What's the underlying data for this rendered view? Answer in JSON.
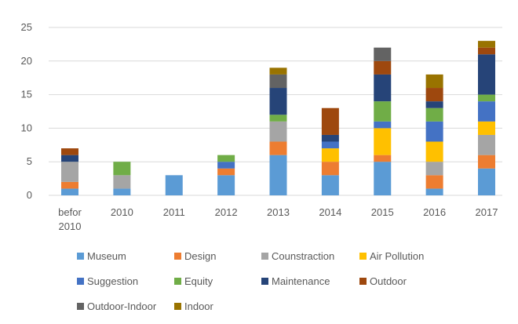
{
  "chart_data": {
    "type": "bar",
    "stacked": true,
    "categories": [
      [
        "befor",
        "2010"
      ],
      [
        "2010"
      ],
      [
        "2011"
      ],
      [
        "2012"
      ],
      [
        "2013"
      ],
      [
        "2014"
      ],
      [
        "2015"
      ],
      [
        "2016"
      ],
      [
        "2017"
      ]
    ],
    "ylim": [
      0,
      25
    ],
    "yticks": [
      0,
      5,
      10,
      15,
      20,
      25
    ],
    "grid": true,
    "legend_position": "bottom",
    "series": [
      {
        "name": "Museum",
        "color": "#5B9BD5",
        "values": [
          1,
          1,
          3,
          3,
          6,
          3,
          5,
          1,
          4
        ]
      },
      {
        "name": "Design",
        "color": "#ED7D31",
        "values": [
          1,
          0,
          0,
          1,
          2,
          2,
          1,
          2,
          2
        ]
      },
      {
        "name": "Counstraction",
        "color": "#A5A5A5",
        "values": [
          3,
          2,
          0,
          0,
          3,
          0,
          0,
          2,
          3
        ]
      },
      {
        "name": "Air Pollution",
        "color": "#FFC000",
        "values": [
          0,
          0,
          0,
          0,
          0,
          2,
          4,
          3,
          2
        ]
      },
      {
        "name": "Suggestion",
        "color": "#4472C4",
        "values": [
          0,
          0,
          0,
          1,
          0,
          1,
          1,
          3,
          3
        ]
      },
      {
        "name": "Equity",
        "color": "#70AD47",
        "values": [
          0,
          2,
          0,
          1,
          1,
          0,
          3,
          2,
          1
        ]
      },
      {
        "name": "Maintenance",
        "color": "#264478",
        "values": [
          1,
          0,
          0,
          0,
          4,
          1,
          4,
          1,
          6
        ]
      },
      {
        "name": "Outdoor",
        "color": "#9E480E",
        "values": [
          1,
          0,
          0,
          0,
          0,
          4,
          2,
          2,
          1
        ]
      },
      {
        "name": "Outdoor-Indoor",
        "color": "#636363",
        "values": [
          0,
          0,
          0,
          0,
          2,
          0,
          2,
          0,
          0
        ]
      },
      {
        "name": "Indoor",
        "color": "#997300",
        "values": [
          0,
          0,
          0,
          0,
          1,
          0,
          0,
          2,
          1
        ]
      }
    ]
  }
}
